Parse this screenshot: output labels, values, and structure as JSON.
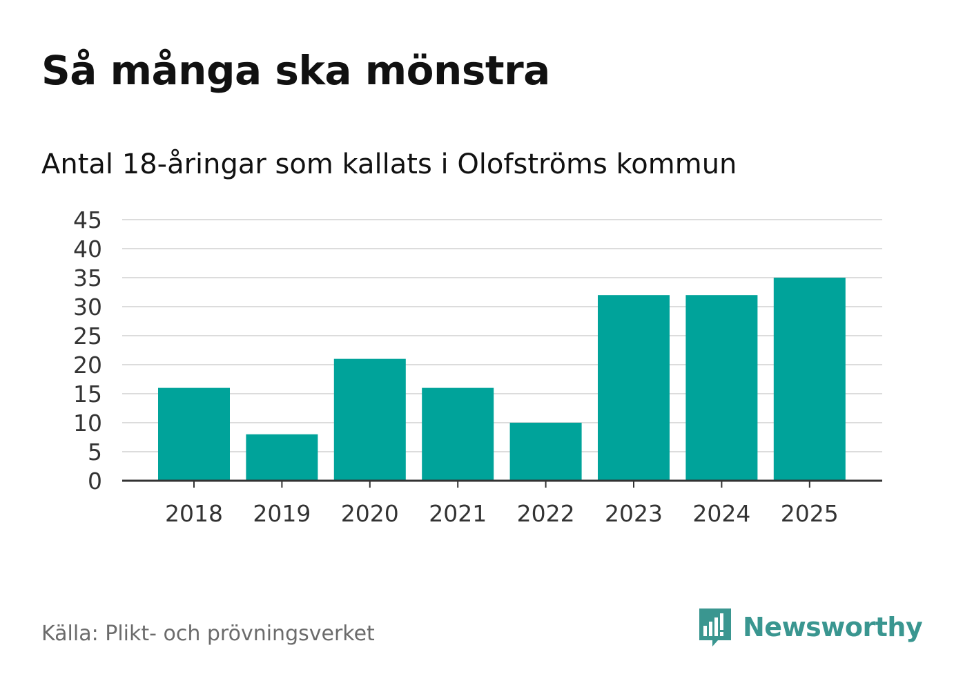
{
  "colors": {
    "bar": "#00a39a",
    "grid": "#dcdcdc",
    "axis": "#333333",
    "brand": "#3a9690"
  },
  "header": {
    "title": "Så många ska mönstra",
    "subtitle": "Antal 18-åringar som kallats i Olofströms kommun"
  },
  "footer": {
    "source": "Källa: Plikt- och prövningsverket",
    "brand_name": "Newsworthy",
    "brand_icon": "bar-chart-speech-bubble-icon"
  },
  "chart_data": {
    "type": "bar",
    "title": "Så många ska mönstra",
    "subtitle": "Antal 18-åringar som kallats i Olofströms kommun",
    "xlabel": "",
    "ylabel": "",
    "categories": [
      "2018",
      "2019",
      "2020",
      "2021",
      "2022",
      "2023",
      "2024",
      "2025"
    ],
    "values": [
      16,
      8,
      21,
      16,
      10,
      32,
      32,
      35
    ],
    "ylim": [
      0,
      45
    ],
    "yticks": [
      0,
      5,
      10,
      15,
      20,
      25,
      30,
      35,
      40,
      45
    ],
    "grid": true,
    "legend": "none"
  }
}
